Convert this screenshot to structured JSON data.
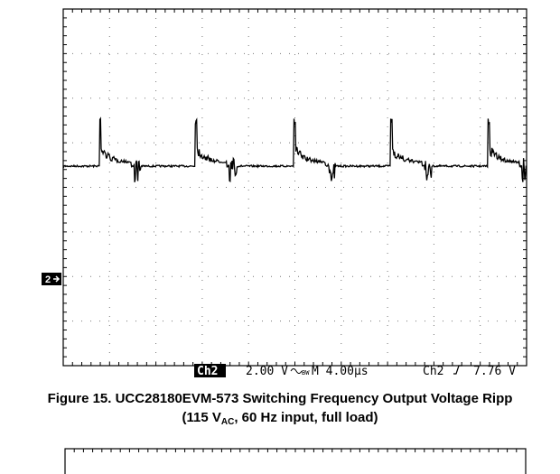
{
  "scope": {
    "channel_badge": "Ch2",
    "scale": "2.00 V",
    "timebase": "M 4.00µs",
    "trigger_source": "Ch2",
    "trigger_level": "7.76 V",
    "ground_marker": "2"
  },
  "caption": {
    "line1": "Figure 15. UCC28180EVM-573 Switching Frequency Output Voltage Ripp",
    "line2_prefix": "(115 V",
    "line2_subscript": "AC",
    "line2_suffix": ", 60 Hz input, full load)"
  }
}
